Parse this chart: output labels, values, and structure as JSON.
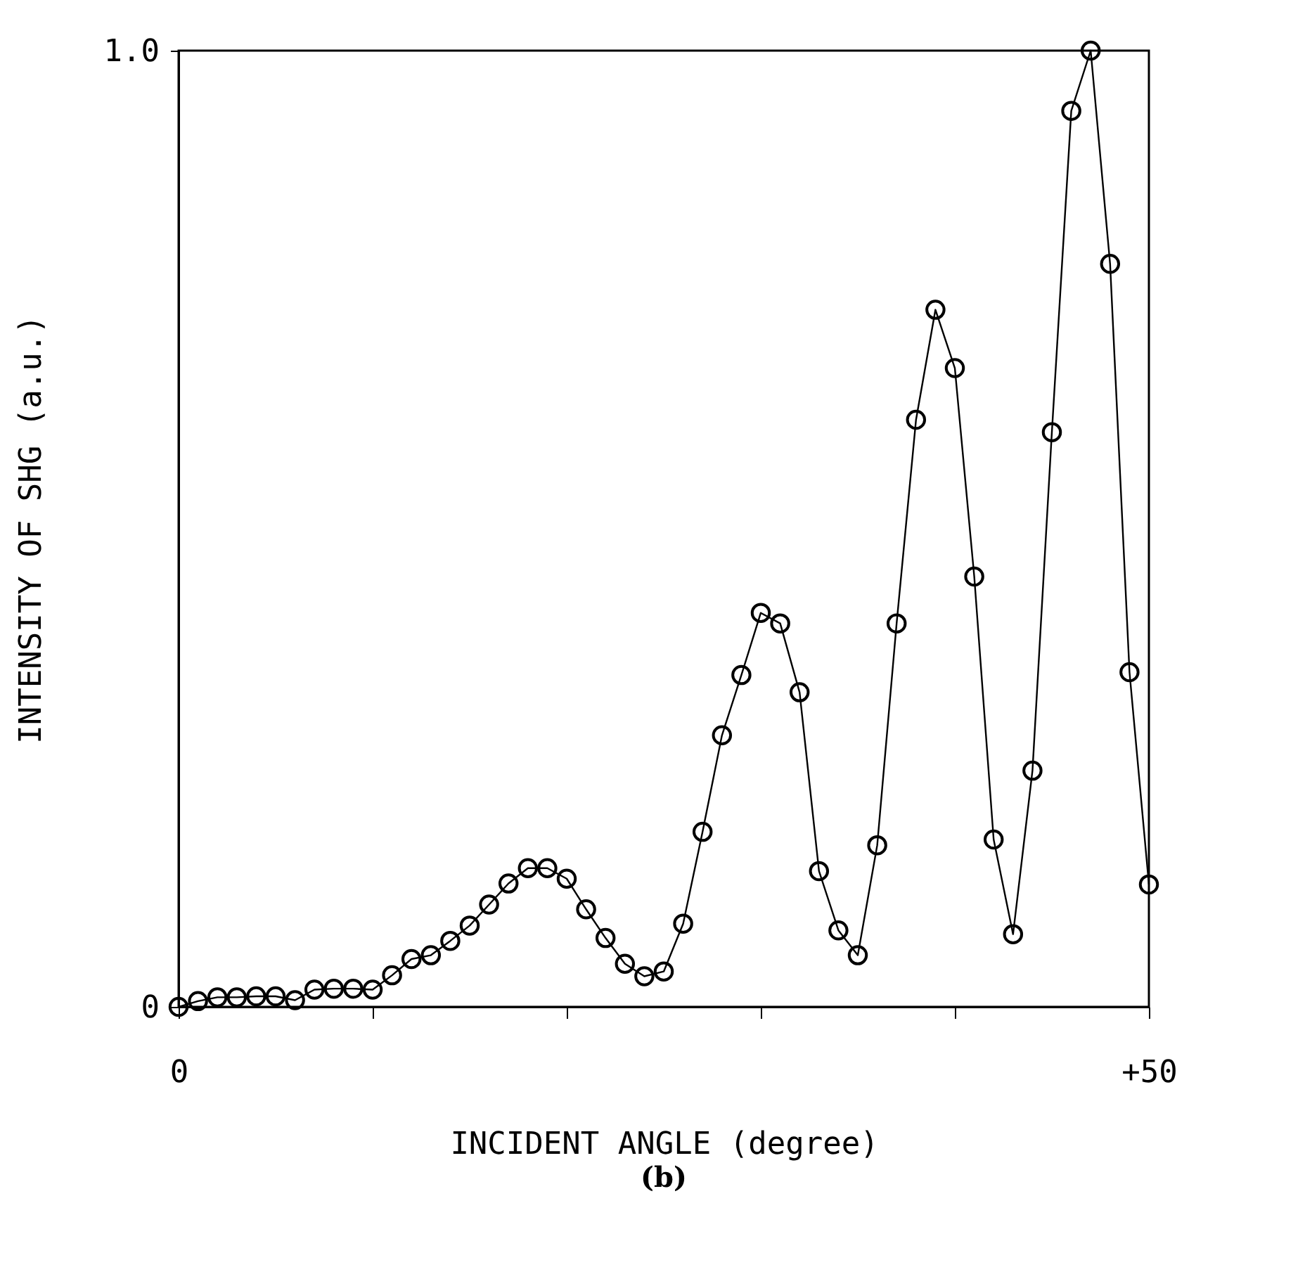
{
  "chart_data": {
    "type": "line",
    "xlabel": "INCIDENT ANGLE (degree)",
    "ylabel": "INTENSITY OF SHG (a.u.)",
    "annotations": [
      "(b)"
    ],
    "x": [
      0,
      1,
      2,
      3,
      4,
      5,
      6,
      7,
      8,
      9,
      10,
      11,
      12,
      13,
      14,
      15,
      16,
      17,
      18,
      19,
      20,
      21,
      22,
      23,
      24,
      25,
      26,
      27,
      28,
      29,
      30,
      31,
      32,
      33,
      34,
      35,
      36,
      37,
      38,
      39,
      40,
      41,
      42,
      43,
      44,
      45,
      46,
      47,
      48,
      49,
      50
    ],
    "series": [
      {
        "color": "#000000",
        "values": [
          0.0,
          0.006,
          0.01,
          0.01,
          0.011,
          0.011,
          0.007,
          0.018,
          0.019,
          0.019,
          0.018,
          0.033,
          0.05,
          0.054,
          0.069,
          0.085,
          0.107,
          0.129,
          0.145,
          0.145,
          0.134,
          0.102,
          0.072,
          0.045,
          0.032,
          0.037,
          0.087,
          0.183,
          0.284,
          0.347,
          0.412,
          0.401,
          0.329,
          0.142,
          0.08,
          0.054,
          0.169,
          0.401,
          0.614,
          0.729,
          0.668,
          0.45,
          0.175,
          0.076,
          0.247,
          0.601,
          0.937,
          1.0,
          0.777,
          0.35,
          0.128
        ]
      }
    ],
    "xlim": [
      0,
      50
    ],
    "ylim": [
      0,
      1.0
    ],
    "xticks": [
      {
        "value": 0,
        "label": "0"
      },
      {
        "value": 10,
        "label": null
      },
      {
        "value": 20,
        "label": null
      },
      {
        "value": 30,
        "label": null
      },
      {
        "value": 40,
        "label": null
      },
      {
        "value": 50,
        "label": "+50"
      }
    ],
    "yticks": [
      0,
      {
        "value": 1.0,
        "label": "1.0"
      }
    ],
    "marker": "circle",
    "line_style": "solid",
    "grid": false,
    "legend": false
  }
}
